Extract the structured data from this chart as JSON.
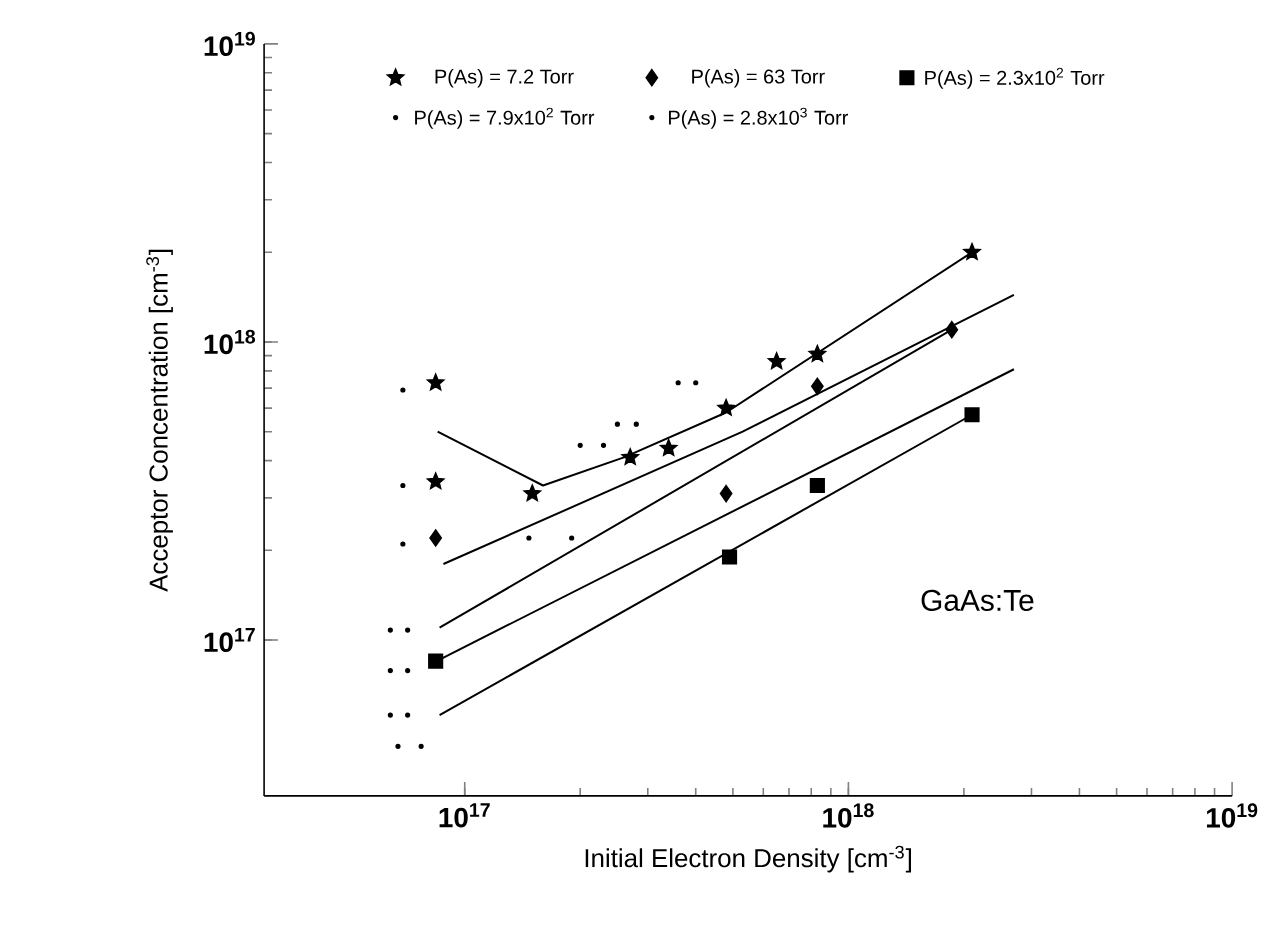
{
  "chart_data": {
    "type": "scatter",
    "xlabel": "Initial Electron Density [cm$^{-3}$]",
    "ylabel": "Acceptor Concentration [cm$^{-3}$]",
    "annotations": [
      "GaAs:Te"
    ],
    "log": "xy",
    "xlim": [
      3e+16,
      1e+19
    ],
    "ylim": [
      3e+16,
      1e+19
    ],
    "xticks": [
      {
        "value": 1e+17,
        "label": "10$^{17}$"
      },
      {
        "value": 1e+18,
        "label": "10$^{18}$"
      },
      {
        "value": 1e+19,
        "label": "10$^{19}$"
      }
    ],
    "yticks": [
      {
        "value": 1e+17,
        "label": "10$^{17}$"
      },
      {
        "value": 1e+18,
        "label": "10$^{18}$"
      },
      {
        "value": 1e+19,
        "label": "10$^{19}$"
      }
    ],
    "grid": false,
    "legend": "top",
    "series": [
      {
        "name": "P(As) = 7.2 Torr",
        "color": "#000000",
        "marker": "star",
        "x": [
          8.4e+16,
          8.4e+16,
          1.5e+17,
          2.7e+17,
          3.4e+17,
          4.8e+17,
          6.5e+17,
          8.3e+17,
          2.1e+18
        ],
        "values": [
          7.3e+17,
          3.4e+17,
          3.1e+17,
          4.1e+17,
          4.4e+17,
          6e+17,
          8.6e+17,
          9.1e+17,
          2e+18
        ]
      },
      {
        "name": "P(As) = 63 Torr",
        "color": "#000000",
        "marker": "diamond",
        "x": [
          8.4e+16,
          4.8e+17,
          8.3e+17,
          1.86e+18
        ],
        "values": [
          2.2e+17,
          3.1e+17,
          7.1e+17,
          1.1e+18
        ]
      },
      {
        "name": "P(As) = 2.3x10$^{2}$ Torr",
        "color": "#000000",
        "marker": "square",
        "x": [
          8.4e+16,
          4.9e+17,
          8.3e+17,
          2.1e+18
        ],
        "values": [
          8.5e+16,
          1.9e+17,
          3.3e+17,
          5.7e+17
        ]
      },
      {
        "name": "P(As) = 7.9x10$^{2}$ Torr",
        "color": "#000000",
        "marker": "circle",
        "x": [
          6.9e+16,
          6.9e+16,
          6.9e+16,
          6.4e+16,
          6.4e+16,
          6.4e+16,
          6.7e+16,
          1.47e+17,
          2e+17,
          2.5e+17,
          3.6e+17
        ],
        "values": [
          6.9e+17,
          3.3e+17,
          2.1e+17,
          1.08e+17,
          7.9e+16,
          5.6e+16,
          4.4e+16,
          2.2e+17,
          4.5e+17,
          5.3e+17,
          7.3e+17
        ]
      },
      {
        "name": "P(As) = 2.8x10$^{3}$ Torr",
        "color": "#000000",
        "marker": "circle",
        "x": [
          7.1e+16,
          7.1e+16,
          7.1e+16,
          7.7e+16,
          1.9e+17,
          2.3e+17,
          2.8e+17,
          4e+17
        ],
        "values": [
          1.08e+17,
          7.9e+16,
          5.6e+16,
          4.4e+16,
          2.2e+17,
          4.5e+17,
          5.3e+17,
          7.3e+17
        ]
      },
      {
        "type": "line",
        "color": "#000000",
        "marker": "none",
        "x": [
          8.5e+16,
          1.6e+17,
          2.6e+17,
          4.8e+17,
          2.1e+18
        ],
        "values": [
          5e+17,
          3.3e+17,
          4.1e+17,
          5.8e+17,
          2e+18
        ]
      },
      {
        "type": "line",
        "color": "#000000",
        "marker": "none",
        "x": [
          8.8e+16,
          5.3e+17,
          2.7e+18
        ],
        "values": [
          1.8e+17,
          5e+17,
          1.44e+18
        ]
      },
      {
        "type": "line",
        "color": "#000000",
        "marker": "none",
        "x": [
          8.6e+16,
          1.86e+18
        ],
        "values": [
          1.1e+17,
          1.1e+18
        ]
      },
      {
        "type": "line",
        "color": "#000000",
        "marker": "none",
        "x": [
          8.6e+16,
          2.7e+18
        ],
        "values": [
          8.6e+16,
          8.1e+17
        ]
      },
      {
        "type": "line",
        "color": "#000000",
        "marker": "none",
        "x": [
          8.6e+16,
          2.1e+18
        ],
        "values": [
          5.6e+16,
          5.7e+17
        ]
      }
    ]
  }
}
